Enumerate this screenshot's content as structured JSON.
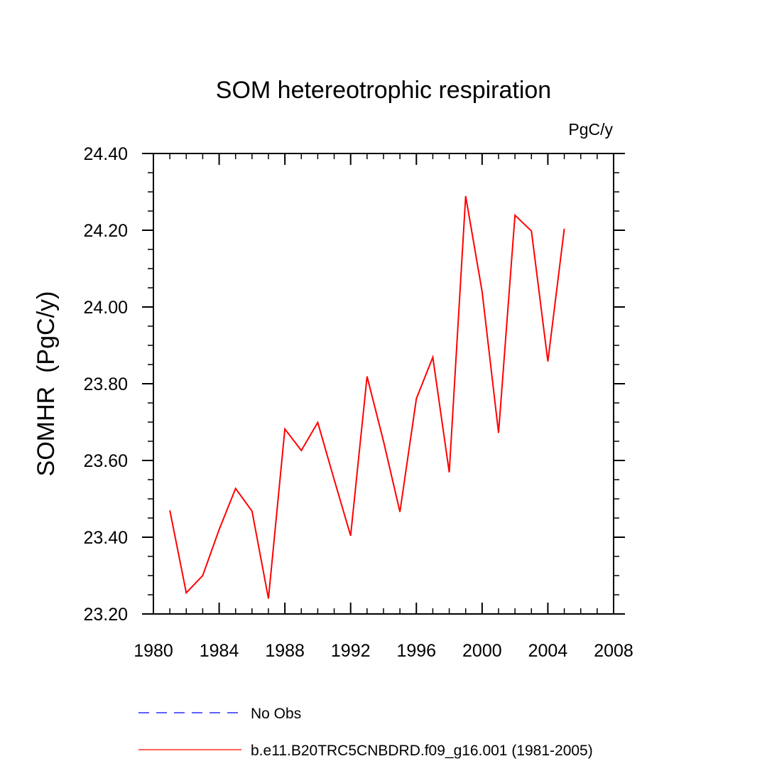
{
  "chart_data": {
    "type": "line",
    "title": "SOM hetereotrophic respiration",
    "units_label": "PgC/y",
    "xlabel": "",
    "ylabel": "SOMHR  (PgC/y)",
    "xlim": [
      1980,
      2008
    ],
    "ylim": [
      23.2,
      24.4
    ],
    "x_ticks": [
      1980,
      1984,
      1988,
      1992,
      1996,
      2000,
      2004,
      2008
    ],
    "x_tick_labels": [
      "1980",
      "1984",
      "1988",
      "1992",
      "1996",
      "2000",
      "2004",
      "2008"
    ],
    "y_ticks": [
      23.2,
      23.4,
      23.6,
      23.8,
      24.0,
      24.2,
      24.4
    ],
    "y_tick_labels": [
      "23.20",
      "23.40",
      "23.60",
      "23.80",
      "24.00",
      "24.20",
      "24.40"
    ],
    "x_minor_step": 1,
    "y_minor_step": 0.05,
    "grid": false,
    "legend_position": "bottom",
    "series": [
      {
        "name": "b.e11.B20TRC5CNBDRD.f09_g16.001 (1981-2005)",
        "color": "#ff0000",
        "style": "solid",
        "x": [
          1981,
          1982,
          1983,
          1984,
          1985,
          1986,
          1987,
          1988,
          1989,
          1990,
          1991,
          1992,
          1993,
          1994,
          1995,
          1996,
          1997,
          1998,
          1999,
          2000,
          2001,
          2002,
          2003,
          2004,
          2005
        ],
        "values": [
          23.47,
          23.255,
          23.3,
          23.42,
          23.527,
          23.468,
          23.24,
          23.682,
          23.626,
          23.699,
          23.55,
          23.404,
          23.819,
          23.65,
          23.466,
          23.761,
          23.869,
          23.569,
          24.289,
          24.04,
          23.672,
          24.239,
          24.198,
          23.858,
          24.204
        ]
      }
    ],
    "legend": [
      {
        "label": "No Obs",
        "color": "#0000ff",
        "style": "dashed"
      },
      {
        "label": "b.e11.B20TRC5CNBDRD.f09_g16.001 (1981-2005)",
        "color": "#ff0000",
        "style": "solid"
      }
    ]
  }
}
